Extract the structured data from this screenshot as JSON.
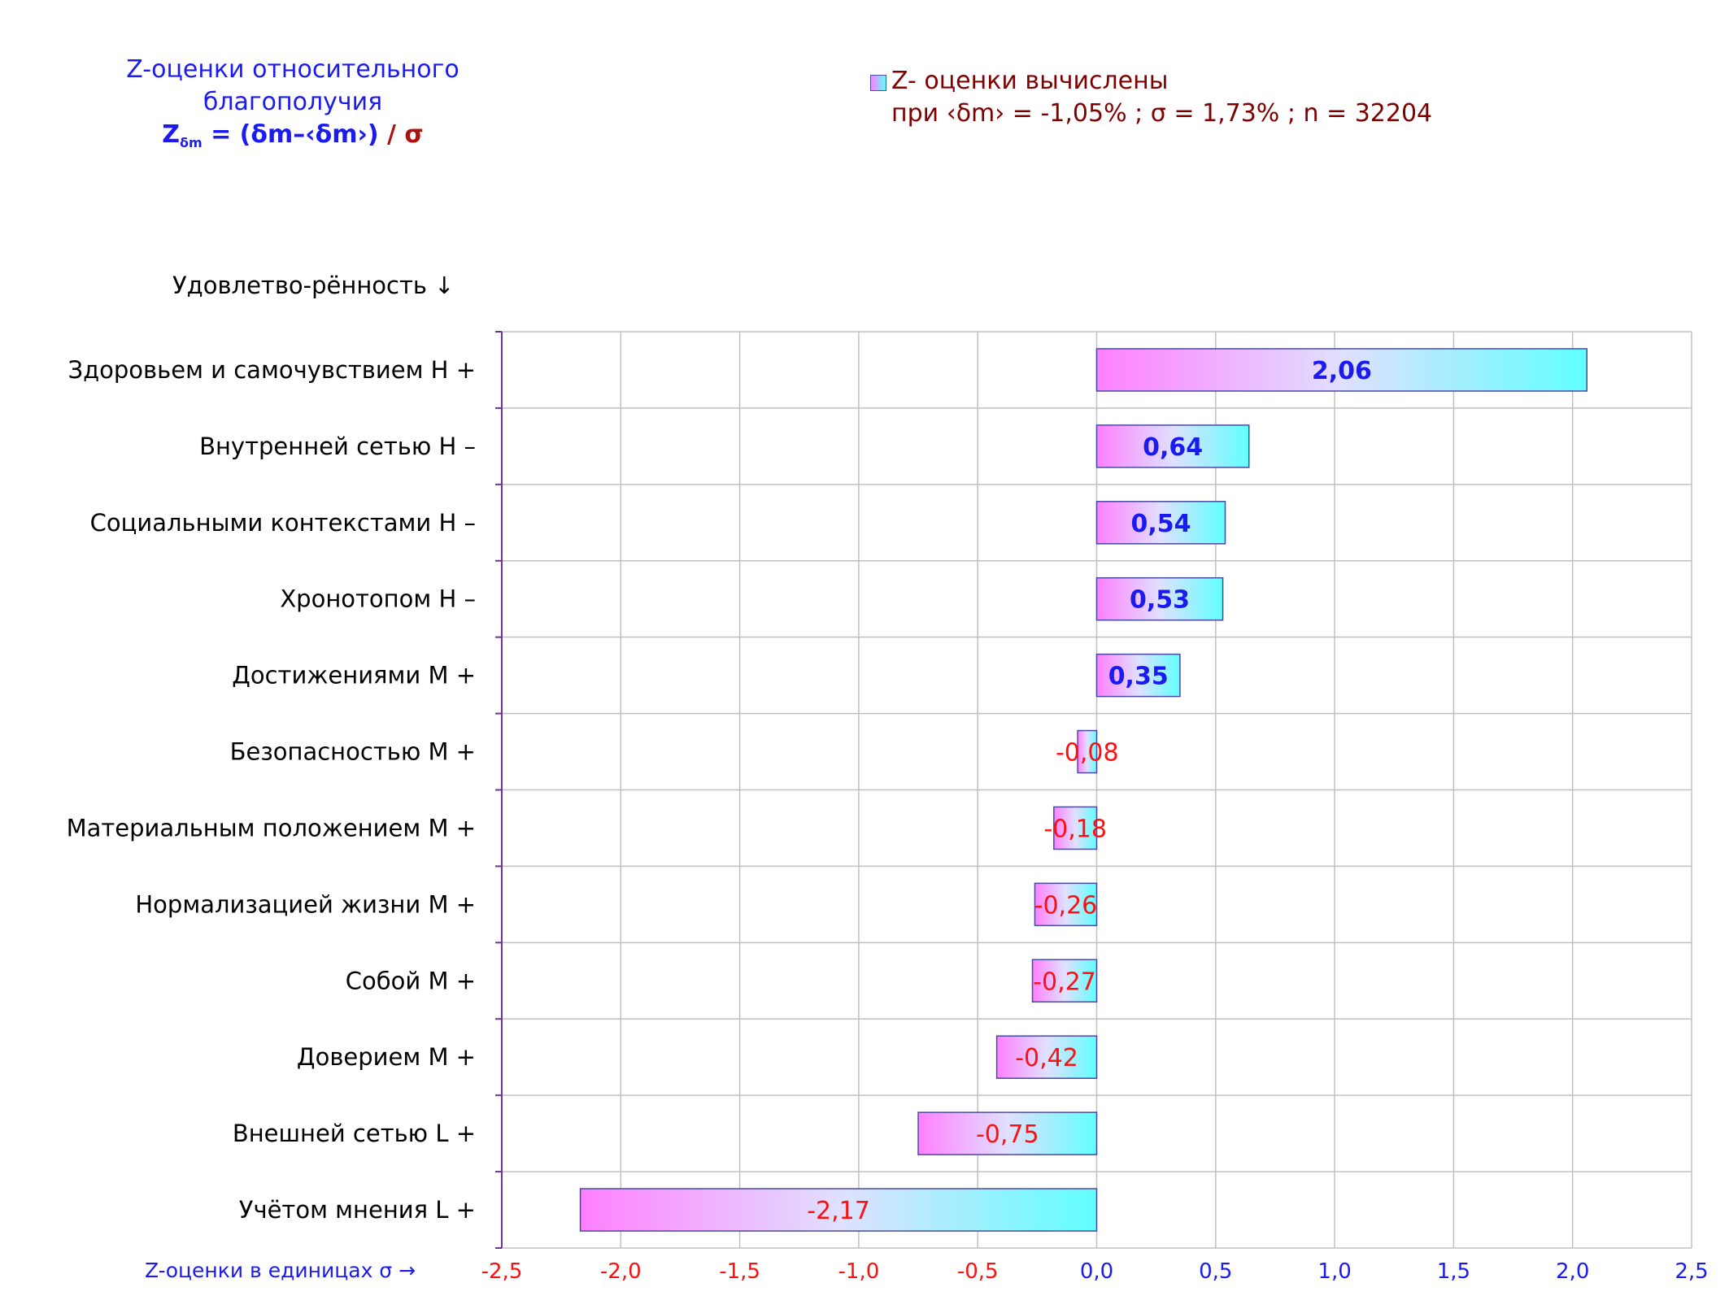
{
  "title": {
    "line1": "Z-оценки  относительного",
    "line2": "благополучия",
    "formula_z": "Z",
    "formula_sub": "δm",
    "formula_rest": " = (δm–‹δm›)",
    "formula_tail": " / σ"
  },
  "legend": {
    "label": "Z- оценки вычислены",
    "stats": "при ‹δm› = -1,05% ; σ = 1,73% ; n = 32204"
  },
  "annotations": {
    "category_header": "Удовлетво-рённость ↓",
    "x_caption": "Z-оценки в единицах σ →"
  },
  "chart_data": {
    "type": "bar",
    "orientation": "horizontal",
    "categories": [
      "Здоровьем и самочувствием  H +",
      "Внутренней сетью  H –",
      "Социальными контекстами  H –",
      "Хронотопом  H –",
      "Достижениями  M +",
      "Безопасностью  M +",
      "Материальным положением  M +",
      "Нормализацией жизни  M +",
      "Собой  M +",
      "Доверием  M +",
      "Внешней сетью  L +",
      "Учётом мнения  L +"
    ],
    "values": [
      2.06,
      0.64,
      0.54,
      0.53,
      0.35,
      -0.08,
      -0.18,
      -0.26,
      -0.27,
      -0.42,
      -0.75,
      -2.17
    ],
    "data_labels": [
      "2,06",
      "0,64",
      "0,54",
      "0,53",
      "0,35",
      "-0,08",
      "-0,18",
      "-0,26",
      "-0,27",
      "-0,42",
      "-0,75",
      "-2,17"
    ],
    "x_ticks": [
      -2.5,
      -2.0,
      -1.5,
      -1.0,
      -0.5,
      0.0,
      0.5,
      1.0,
      1.5,
      2.0,
      2.5
    ],
    "x_tick_labels": [
      "-2,5",
      "-2,0",
      "-1,5",
      "-1,0",
      "-0,5",
      "0,0",
      "0,5",
      "1,0",
      "1,5",
      "2,0",
      "2,5"
    ],
    "xlim": [
      -2.5,
      2.5
    ],
    "grid": true,
    "legend_position": "top-right",
    "colors": {
      "bar_gradient_start": "#ff80ff",
      "bar_gradient_end": "#60ffff",
      "bar_border": "#4a4aa0",
      "positive_label": "#1b1bf0",
      "negative_label": "#ff1010",
      "negative_tick": "#ff1010",
      "positive_tick": "#1b1bf0",
      "grid": "#c0c0c0",
      "axis": "#7030a0"
    }
  }
}
